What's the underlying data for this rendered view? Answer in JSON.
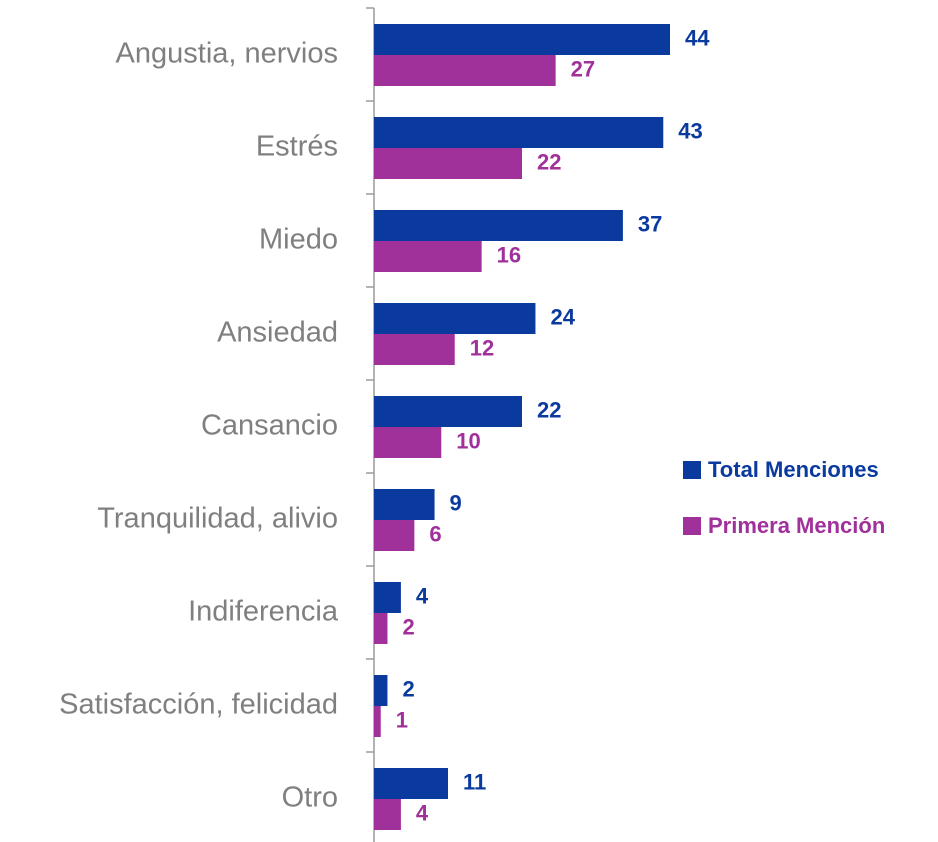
{
  "chart_data": {
    "type": "bar",
    "orientation": "horizontal",
    "categories": [
      "Angustia, nervios",
      "Estrés",
      "Miedo",
      "Ansiedad",
      "Cansancio",
      "Tranquilidad, alivio",
      "Indiferencia",
      "Satisfacción, felicidad",
      "Otro"
    ],
    "series": [
      {
        "name": "Total Menciones",
        "color": "#0b3a9e",
        "values": [
          44,
          43,
          37,
          24,
          22,
          9,
          4,
          2,
          11
        ]
      },
      {
        "name": "Primera Mención",
        "color": "#a0309a",
        "values": [
          27,
          22,
          16,
          12,
          10,
          6,
          2,
          1,
          4
        ]
      }
    ],
    "legend": "right"
  }
}
